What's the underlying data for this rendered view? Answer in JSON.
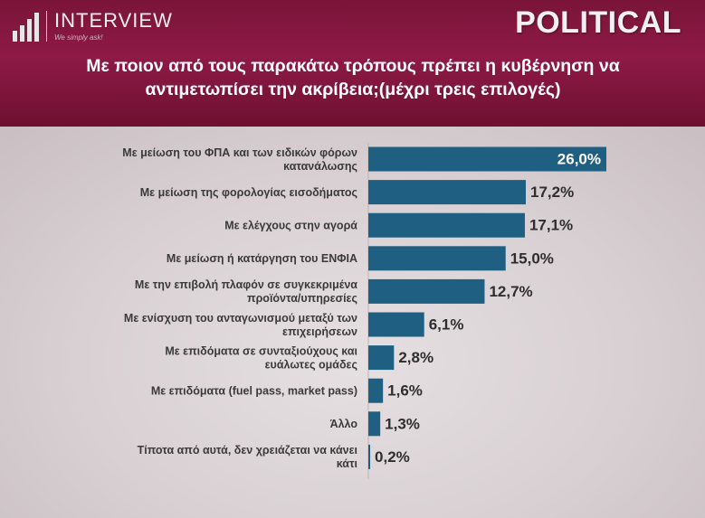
{
  "header": {
    "logo_name": "INTERVIEW",
    "logo_tagline": "We simply ask!",
    "brand": "POLITICAL",
    "question": "Με ποιον από τους παρακάτω τρόπους πρέπει η κυβέρνηση να αντιμετωπίσει την ακρίβεια;(μέχρι τρεις επιλογές)"
  },
  "colors": {
    "header_bg": "#8e1a45",
    "bar": "#1f5f82",
    "brand_text": "#f3f0f1"
  },
  "chart_data": {
    "type": "bar",
    "orientation": "horizontal",
    "title": "",
    "xlabel": "",
    "ylabel": "",
    "xlim": [
      0,
      30
    ],
    "grid": false,
    "legend": "none",
    "categories": [
      [
        "Με μείωση του ΦΠΑ και των ειδικών φόρων",
        "κατανάλωσης"
      ],
      [
        "Με μείωση της φορολογίας εισοδήματος"
      ],
      [
        "Με ελέγχους στην αγορά"
      ],
      [
        "Με μείωση ή κατάργηση του ΕΝΦΙΑ"
      ],
      [
        "Με την επιβολή πλαφόν σε συγκεκριμένα",
        "προϊόντα/υπηρεσίες"
      ],
      [
        "Με ενίσχυση του ανταγωνισμού μεταξύ των",
        "επιχειρήσεων"
      ],
      [
        "Με επιδόματα σε συνταξιούχους και",
        "ευάλωτες ομάδες"
      ],
      [
        "Με επιδόματα (fuel pass, market pass)"
      ],
      [
        "Άλλο"
      ],
      [
        "Τίποτα από αυτά, δεν χρειάζεται να κάνει",
        "κάτι"
      ]
    ],
    "values": [
      26.0,
      17.2,
      17.1,
      15.0,
      12.7,
      6.1,
      2.8,
      1.6,
      1.3,
      0.2
    ],
    "value_labels": [
      "26,0%",
      "17,2%",
      "17,1%",
      "15,0%",
      "12,7%",
      "6,1%",
      "2,8%",
      "1,6%",
      "1,3%",
      "0,2%"
    ]
  }
}
